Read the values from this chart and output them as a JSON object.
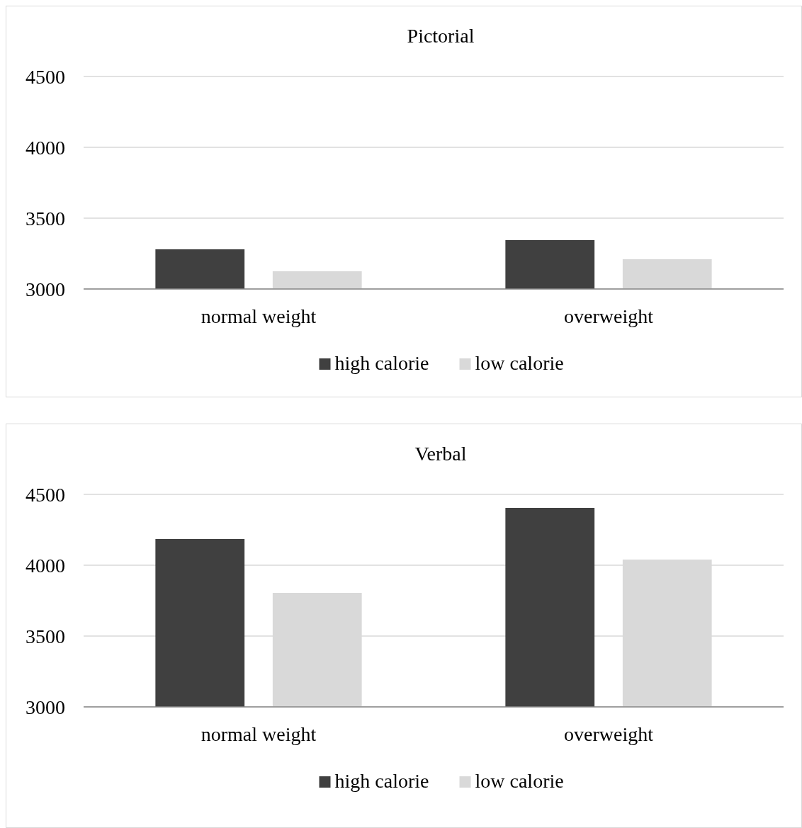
{
  "chart_data": [
    {
      "type": "bar",
      "title": "Pictorial",
      "categories": [
        "normal weight",
        "overweight"
      ],
      "series": [
        {
          "name": "high calorie",
          "color": "#404040",
          "values": [
            3280,
            3345
          ]
        },
        {
          "name": "low calorie",
          "color": "#d9d9d9",
          "values": [
            3125,
            3210
          ]
        }
      ],
      "ylim": [
        3000,
        4500
      ],
      "yticks": [
        3000,
        3500,
        4000,
        4500
      ],
      "grid": "y",
      "legend": "bottom"
    },
    {
      "type": "bar",
      "title": "Verbal",
      "categories": [
        "normal weight",
        "overweight"
      ],
      "series": [
        {
          "name": "high calorie",
          "color": "#404040",
          "values": [
            4185,
            4405
          ]
        },
        {
          "name": "low calorie",
          "color": "#d9d9d9",
          "values": [
            3805,
            4040
          ]
        }
      ],
      "ylim": [
        3000,
        4500
      ],
      "yticks": [
        3000,
        3500,
        4000,
        4500
      ],
      "grid": "y",
      "legend": "bottom"
    }
  ]
}
